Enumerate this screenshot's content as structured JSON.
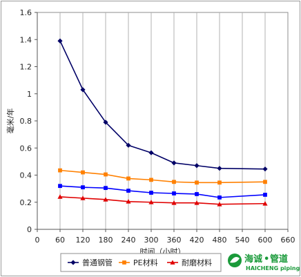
{
  "chart_data": {
    "type": "line",
    "xlabel": "时间（小时）",
    "ylabel": "毫米/年",
    "xlim": [
      0,
      660
    ],
    "ylim": [
      0,
      1.6
    ],
    "xticks": [
      "0",
      "60",
      "120",
      "180",
      "240",
      "300",
      "360",
      "420",
      "480",
      "540",
      "600",
      "660"
    ],
    "yticks": [
      "0",
      "0.2",
      "0.4",
      "0.6",
      "0.8",
      "1",
      "1.2",
      "1.4",
      "1.6"
    ],
    "grid": "vertical",
    "legend": "bottom",
    "x": [
      60,
      120,
      180,
      240,
      300,
      360,
      420,
      480,
      600
    ],
    "series": [
      {
        "name": "普通钢管",
        "color": "#000066",
        "marker": "diamond",
        "values": [
          1.39,
          1.03,
          0.79,
          0.62,
          0.565,
          0.49,
          0.47,
          0.45,
          0.445
        ]
      },
      {
        "name": "PE材料",
        "color": "#ff8000",
        "marker": "square",
        "values": [
          0.435,
          0.42,
          0.405,
          0.375,
          0.365,
          0.35,
          0.345,
          0.345,
          0.35
        ]
      },
      {
        "name": "耐磨材料",
        "color": "#e00000",
        "marker": "triangle",
        "values": [
          0.24,
          0.23,
          0.22,
          0.205,
          0.2,
          0.195,
          0.195,
          0.185,
          0.19
        ]
      },
      {
        "name": "",
        "color": "#0000ff",
        "marker": "square",
        "values": [
          0.32,
          0.31,
          0.305,
          0.285,
          0.27,
          0.265,
          0.26,
          0.235,
          0.255
        ]
      }
    ]
  },
  "watermark": {
    "brand_cn": "海诚",
    "dot": "•",
    "pipe_cn": "管道",
    "brand_en": "HAICHENG piping"
  }
}
